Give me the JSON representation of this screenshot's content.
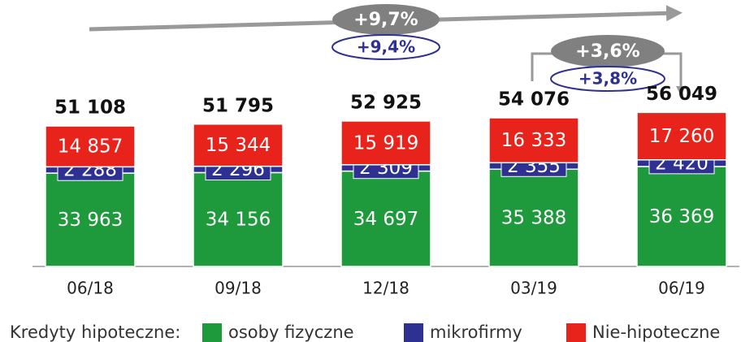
{
  "chart_data": {
    "type": "stacked_bar",
    "categories": [
      "06/18",
      "09/18",
      "12/18",
      "03/19",
      "06/19"
    ],
    "series": [
      {
        "name": "osoby fizyczne",
        "color": "#1e9a3c",
        "values": [
          33963,
          34156,
          34697,
          35388,
          36369
        ],
        "value_labels": [
          "33 963",
          "34 156",
          "34 697",
          "35 388",
          "36 369"
        ]
      },
      {
        "name": "mikrofirmy",
        "color": "#2e3192",
        "values": [
          2288,
          2296,
          2309,
          2355,
          2420
        ],
        "value_labels": [
          "2 288",
          "2 296",
          "2 309",
          "2 355",
          "2 420"
        ]
      },
      {
        "name": "Nie-hipoteczne",
        "color": "#e8231c",
        "values": [
          14857,
          15344,
          15919,
          16333,
          17260
        ],
        "value_labels": [
          "14 857",
          "15 344",
          "15 919",
          "16 333",
          "17 260"
        ]
      }
    ],
    "totals": [
      51108,
      51795,
      52925,
      54076,
      56049
    ],
    "total_labels": [
      "51 108",
      "51 795",
      "52 925",
      "54 076",
      "56 049"
    ],
    "ylim": [
      0,
      60000
    ],
    "legend_title": "Kredyty hipoteczne:",
    "annotations": [
      {
        "text": "+9,7%"
      },
      {
        "text": "+9,4%"
      },
      {
        "text": "+3,6%"
      },
      {
        "text": "+3,8%"
      }
    ]
  }
}
